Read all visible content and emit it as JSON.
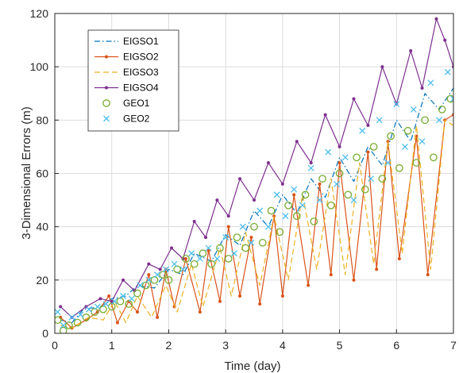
{
  "chart_data": {
    "type": "line",
    "title": "",
    "xlabel": "Time (day)",
    "ylabel": "3-Dimensional Errors (m)",
    "xlim": [
      0,
      7
    ],
    "ylim": [
      0,
      120
    ],
    "xticks": [
      "0",
      "1",
      "2",
      "3",
      "4",
      "5",
      "6",
      "7"
    ],
    "yticks": [
      "0",
      "20",
      "40",
      "60",
      "80",
      "100",
      "120"
    ],
    "grid": true,
    "legend_position": "top-left",
    "series": [
      {
        "name": "EIGSO1",
        "color": "#0072BD",
        "style": "dash-dot",
        "marker": "none",
        "x": [
          0.1,
          0.3,
          0.5,
          0.8,
          1.0,
          1.25,
          1.45,
          1.75,
          2.0,
          2.25,
          2.45,
          2.75,
          3.0,
          3.25,
          3.5,
          3.75,
          4.0,
          4.25,
          4.5,
          4.75,
          5.0,
          5.25,
          5.5,
          5.75,
          6.0,
          6.25,
          6.5,
          6.75,
          7.0
        ],
        "y": [
          5,
          4,
          9,
          10,
          13,
          14,
          18,
          17,
          24,
          22,
          30,
          27,
          37,
          33,
          46,
          40,
          52,
          45,
          58,
          51,
          66,
          57,
          70,
          63,
          80,
          72,
          90,
          84,
          92
        ]
      },
      {
        "name": "EIGSO2",
        "color": "#D95319",
        "style": "solid",
        "marker": "dot",
        "x": [
          0.1,
          0.3,
          0.55,
          0.75,
          0.95,
          1.1,
          1.3,
          1.45,
          1.65,
          1.8,
          1.95,
          2.1,
          2.3,
          2.55,
          2.7,
          2.9,
          3.05,
          3.25,
          3.45,
          3.6,
          3.85,
          4.0,
          4.2,
          4.45,
          4.65,
          4.85,
          5.0,
          5.25,
          5.5,
          5.65,
          5.85,
          6.05,
          6.35,
          6.55,
          6.85,
          7.0
        ],
        "y": [
          6,
          2,
          5,
          8,
          14,
          4,
          12,
          8,
          22,
          6,
          24,
          10,
          28,
          8,
          31,
          12,
          40,
          14,
          36,
          11,
          44,
          14,
          52,
          18,
          56,
          22,
          64,
          20,
          68,
          24,
          72,
          28,
          74,
          22,
          80,
          82
        ]
      },
      {
        "name": "EIGSO3",
        "color": "#EDB120",
        "style": "dashed",
        "marker": "none",
        "x": [
          0.1,
          0.3,
          0.6,
          0.85,
          1.05,
          1.25,
          1.45,
          1.7,
          1.95,
          2.15,
          2.4,
          2.6,
          2.9,
          3.1,
          3.35,
          3.6,
          3.85,
          4.1,
          4.35,
          4.6,
          4.85,
          5.1,
          5.35,
          5.6,
          5.85,
          6.1,
          6.35,
          6.6,
          6.85,
          7.0
        ],
        "y": [
          3,
          2,
          6,
          5,
          12,
          4,
          14,
          6,
          18,
          8,
          26,
          10,
          32,
          14,
          38,
          18,
          44,
          20,
          52,
          24,
          58,
          22,
          64,
          26,
          72,
          30,
          78,
          24,
          80,
          78
        ]
      },
      {
        "name": "EIGSO4",
        "color": "#7E2F8E",
        "style": "solid",
        "marker": "dot",
        "x": [
          0.1,
          0.3,
          0.55,
          0.8,
          1.0,
          1.2,
          1.4,
          1.65,
          1.85,
          2.05,
          2.25,
          2.45,
          2.65,
          2.85,
          3.05,
          3.25,
          3.5,
          3.75,
          4.0,
          4.25,
          4.5,
          4.75,
          5.0,
          5.25,
          5.5,
          5.75,
          6.0,
          6.25,
          6.45,
          6.7,
          6.85,
          7.0
        ],
        "y": [
          10,
          6,
          10,
          13,
          12,
          20,
          16,
          26,
          24,
          32,
          28,
          42,
          36,
          50,
          44,
          58,
          50,
          64,
          56,
          72,
          64,
          82,
          70,
          88,
          78,
          100,
          86,
          106,
          92,
          118,
          110,
          100
        ]
      },
      {
        "name": "GEO1",
        "color": "#77AC30",
        "style": "none",
        "marker": "circle",
        "x": [
          0.05,
          0.15,
          0.25,
          0.4,
          0.55,
          0.7,
          0.85,
          1.0,
          1.15,
          1.3,
          1.45,
          1.6,
          1.75,
          1.9,
          2.0,
          2.15,
          2.3,
          2.45,
          2.6,
          2.75,
          2.9,
          3.05,
          3.2,
          3.35,
          3.5,
          3.65,
          3.8,
          3.95,
          4.1,
          4.25,
          4.4,
          4.55,
          4.7,
          4.85,
          5.0,
          5.15,
          5.3,
          5.45,
          5.6,
          5.75,
          5.9,
          6.05,
          6.2,
          6.35,
          6.5,
          6.65,
          6.8,
          6.95
        ],
        "y": [
          5,
          1,
          3,
          4,
          6,
          8,
          9,
          10,
          12,
          11,
          15,
          18,
          20,
          22,
          20,
          24,
          28,
          26,
          30,
          26,
          32,
          28,
          36,
          32,
          40,
          34,
          46,
          38,
          48,
          44,
          52,
          42,
          58,
          48,
          60,
          52,
          66,
          54,
          70,
          58,
          74,
          62,
          76,
          64,
          80,
          66,
          84,
          88
        ]
      },
      {
        "name": "GEO2",
        "color": "#4DBEEE",
        "style": "none",
        "marker": "x",
        "x": [
          0.05,
          0.15,
          0.3,
          0.45,
          0.6,
          0.75,
          0.9,
          1.05,
          1.2,
          1.35,
          1.5,
          1.65,
          1.8,
          1.95,
          2.1,
          2.25,
          2.4,
          2.55,
          2.7,
          2.85,
          3.0,
          3.15,
          3.3,
          3.45,
          3.6,
          3.75,
          3.9,
          4.05,
          4.2,
          4.35,
          4.5,
          4.65,
          4.8,
          4.95,
          5.1,
          5.25,
          5.4,
          5.55,
          5.7,
          5.85,
          6.0,
          6.15,
          6.3,
          6.45,
          6.6,
          6.75,
          6.9,
          7.0
        ],
        "y": [
          8,
          3,
          6,
          7,
          9,
          10,
          11,
          12,
          14,
          13,
          18,
          20,
          22,
          24,
          26,
          24,
          30,
          28,
          32,
          28,
          36,
          30,
          40,
          34,
          46,
          40,
          52,
          44,
          54,
          48,
          62,
          50,
          68,
          56,
          66,
          50,
          76,
          58,
          80,
          64,
          86,
          70,
          84,
          72,
          94,
          80,
          98,
          88
        ]
      }
    ]
  }
}
